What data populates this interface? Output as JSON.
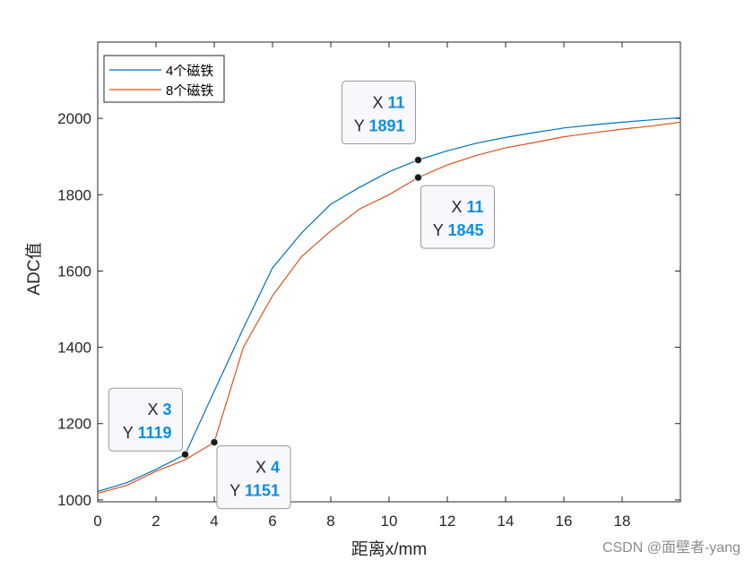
{
  "chart_data": {
    "type": "line",
    "title": "",
    "xlabel": "距离x/mm",
    "ylabel": "ADC值",
    "xlim": [
      0,
      20
    ],
    "ylim": [
      995,
      2200
    ],
    "xticks": [
      0,
      2,
      4,
      6,
      8,
      10,
      12,
      14,
      16,
      18
    ],
    "yticks": [
      1000,
      1200,
      1400,
      1600,
      1800,
      2000
    ],
    "grid": false,
    "legend_position": "top-left",
    "series": [
      {
        "name": "4个磁铁",
        "color": "#0072bd",
        "x": [
          0,
          1,
          2,
          3,
          4,
          5,
          6,
          7,
          8,
          9,
          10,
          11,
          12,
          13,
          14,
          15,
          16,
          17,
          18,
          19,
          20
        ],
        "values": [
          1022,
          1045,
          1080,
          1119,
          1285,
          1450,
          1608,
          1700,
          1775,
          1820,
          1860,
          1891,
          1915,
          1935,
          1950,
          1963,
          1975,
          1983,
          1990,
          1996,
          2002
        ]
      },
      {
        "name": "8个磁铁",
        "color": "#d95319",
        "x": [
          0,
          1,
          2,
          3,
          4,
          5,
          6,
          7,
          8,
          9,
          10,
          11,
          12,
          13,
          14,
          15,
          16,
          17,
          18,
          19,
          20
        ],
        "values": [
          1017,
          1038,
          1075,
          1105,
          1151,
          1400,
          1535,
          1638,
          1705,
          1763,
          1800,
          1845,
          1878,
          1903,
          1923,
          1937,
          1952,
          1962,
          1972,
          1980,
          1990
        ]
      }
    ],
    "datatips": [
      {
        "series": 0,
        "x": 11,
        "y": 1891,
        "x_label": "X",
        "y_label": "Y",
        "x_value": "11",
        "y_value": "1891"
      },
      {
        "series": 1,
        "x": 11,
        "y": 1845,
        "x_label": "X",
        "y_label": "Y",
        "x_value": "11",
        "y_value": "1845"
      },
      {
        "series": 0,
        "x": 3,
        "y": 1119,
        "x_label": "X",
        "y_label": "Y",
        "x_value": "3",
        "y_value": "1119"
      },
      {
        "series": 1,
        "x": 4,
        "y": 1151,
        "x_label": "X",
        "y_label": "Y",
        "x_value": "4",
        "y_value": "1151"
      }
    ]
  },
  "watermark": "CSDN @面壁者-yang"
}
